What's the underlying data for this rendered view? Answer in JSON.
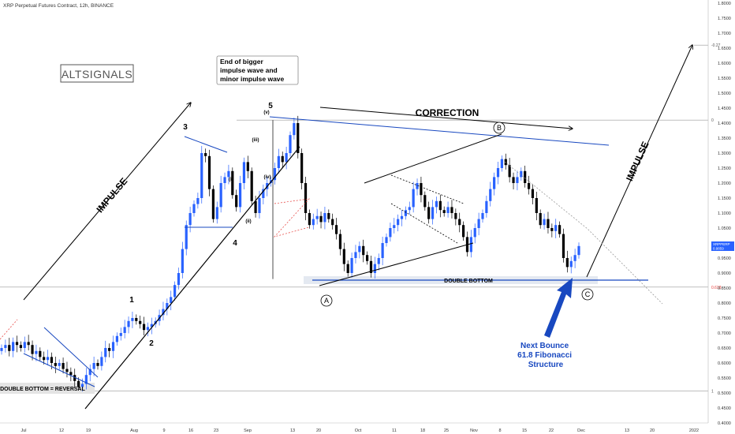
{
  "header": {
    "title": "XRP Perpetual Futures Contract, 12h, BINANCE"
  },
  "logo": {
    "text": "ALTSIGNALS"
  },
  "price_tag": {
    "symbol": "XRPPERP",
    "value": "0.9859"
  },
  "colors": {
    "up": "#2962ff",
    "down": "#000000",
    "level": "#1848c0",
    "fib_red": "#e53935"
  },
  "chart_data": {
    "type": "candlestick",
    "title": "XRP Perpetual Futures Contract, 12h, BINANCE",
    "ylim": [
      0.4,
      1.8
    ],
    "y_ticks": [
      "0.4000",
      "0.4500",
      "0.5000",
      "0.5500",
      "0.6000",
      "0.6500",
      "0.7000",
      "0.7500",
      "0.8000",
      "0.8500",
      "0.9000",
      "0.9500",
      "1.0000",
      "1.0500",
      "1.1000",
      "1.1500",
      "1.2000",
      "1.2500",
      "1.3000",
      "1.3500",
      "1.4000",
      "1.4500",
      "1.5000",
      "1.5500",
      "1.6000",
      "1.6500",
      "1.7000",
      "1.7500",
      "1.8000"
    ],
    "x_ticks": [
      "Jul",
      "12",
      "19",
      "Aug",
      "9",
      "16",
      "23",
      "Sep",
      "13",
      "20",
      "Oct",
      "11",
      "18",
      "25",
      "Nov",
      "8",
      "15",
      "22",
      "Dec",
      "13",
      "20",
      "2022"
    ],
    "fib_levels": [
      {
        "label": "-0.27",
        "price": 1.66
      },
      {
        "label": "0",
        "price": 1.41
      },
      {
        "label": "0.618",
        "price": 0.853
      },
      {
        "label": "1",
        "price": 0.507
      }
    ],
    "prices": [
      0.65,
      0.66,
      0.64,
      0.67,
      0.66,
      0.65,
      0.67,
      0.66,
      0.63,
      0.64,
      0.62,
      0.61,
      0.62,
      0.6,
      0.59,
      0.6,
      0.58,
      0.57,
      0.56,
      0.54,
      0.52,
      0.53,
      0.56,
      0.58,
      0.6,
      0.59,
      0.62,
      0.65,
      0.64,
      0.67,
      0.69,
      0.7,
      0.72,
      0.74,
      0.75,
      0.74,
      0.73,
      0.71,
      0.72,
      0.73,
      0.74,
      0.76,
      0.78,
      0.8,
      0.82,
      0.86,
      0.9,
      0.98,
      1.06,
      1.1,
      1.13,
      1.15,
      1.3,
      1.29,
      1.18,
      1.08,
      1.12,
      1.2,
      1.22,
      1.24,
      1.16,
      1.12,
      1.2,
      1.27,
      1.24,
      1.14,
      1.1,
      1.15,
      1.18,
      1.2,
      1.21,
      1.25,
      1.29,
      1.27,
      1.3,
      1.36,
      1.4,
      1.3,
      1.2,
      1.1,
      1.06,
      1.08,
      1.09,
      1.07,
      1.1,
      1.08,
      1.06,
      1.03,
      0.98,
      0.93,
      0.9,
      0.95,
      0.97,
      0.99,
      0.96,
      0.94,
      0.9,
      0.93,
      0.95,
      1.0,
      1.02,
      1.05,
      1.06,
      1.08,
      1.09,
      1.11,
      1.12,
      1.18,
      1.2,
      1.16,
      1.12,
      1.08,
      1.12,
      1.14,
      1.11,
      1.1,
      1.12,
      1.1,
      1.08,
      1.06,
      1.02,
      0.97,
      1.02,
      1.05,
      1.08,
      1.1,
      1.14,
      1.18,
      1.22,
      1.25,
      1.28,
      1.26,
      1.22,
      1.2,
      1.22,
      1.24,
      1.2,
      1.18,
      1.15,
      1.1,
      1.06,
      1.08,
      1.05,
      1.04,
      1.06,
      1.03,
      0.95,
      0.92,
      0.94,
      0.96,
      0.99
    ],
    "annotations": [
      {
        "text": "IMPULSE"
      },
      {
        "text": "IMPULSE"
      },
      {
        "text": "CORRECTION"
      },
      {
        "text": "DOUBLE BOTTOM"
      },
      {
        "text": "DOUBLE BOTTOM = REVERSAL"
      },
      {
        "text": "End of bigger impulse wave and minor impulse wave"
      },
      {
        "text": "Next Bounce 61.8 Fibonacci Structure"
      },
      {
        "text": "1"
      },
      {
        "text": "2"
      },
      {
        "text": "3"
      },
      {
        "text": "4"
      },
      {
        "text": "5"
      },
      {
        "text": "(i)"
      },
      {
        "text": "(ii)"
      },
      {
        "text": "(iii)"
      },
      {
        "text": "(iv)"
      },
      {
        "text": "(v)"
      },
      {
        "text": "A"
      },
      {
        "text": "B"
      },
      {
        "text": "C"
      }
    ]
  }
}
